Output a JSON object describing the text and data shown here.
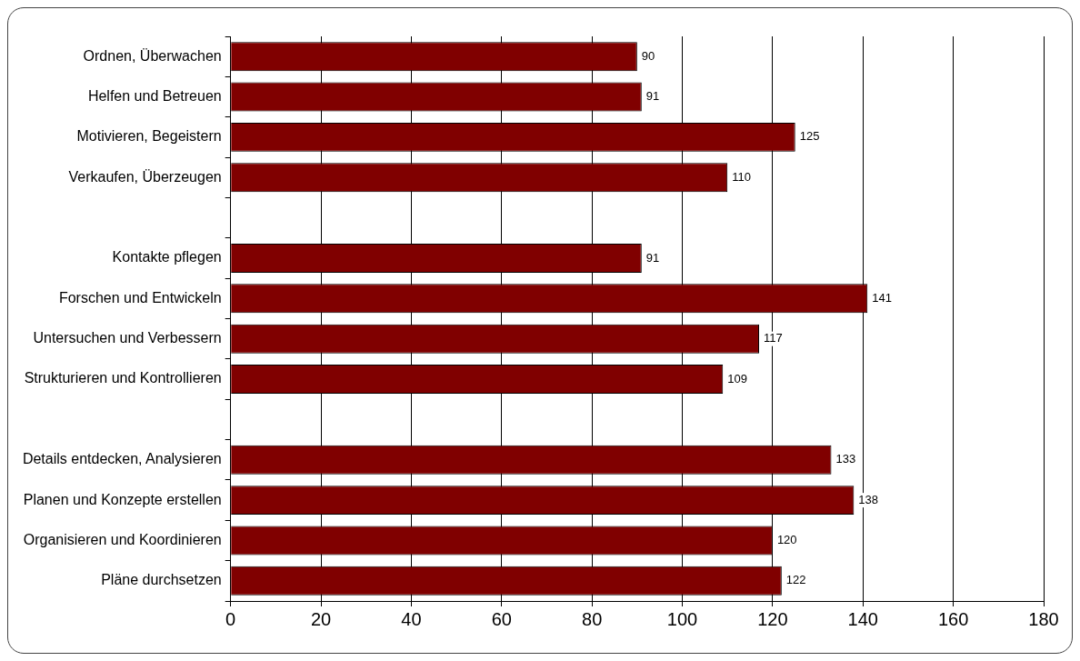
{
  "chart_data": {
    "type": "bar",
    "orientation": "horizontal",
    "categories": [
      "Ordnen, Überwachen",
      "Helfen und Betreuen",
      "Motivieren, Begeistern",
      "Verkaufen, Überzeugen",
      null,
      "Kontakte pflegen",
      "Forschen und Entwickeln",
      "Untersuchen und Verbessern",
      "Strukturieren und Kontrollieren",
      null,
      "Details entdecken, Analysieren",
      "Planen und Konzepte erstellen",
      "Organisieren und Koordinieren",
      "Pläne durchsetzen"
    ],
    "values": [
      90,
      91,
      125,
      110,
      null,
      91,
      141,
      117,
      109,
      null,
      133,
      138,
      120,
      122
    ],
    "color": "#800000",
    "xlim": [
      0,
      180
    ],
    "xticks": [
      0,
      20,
      40,
      60,
      80,
      100,
      120,
      140,
      160,
      180
    ],
    "grid": "x",
    "data_labels": true,
    "legend": false
  }
}
